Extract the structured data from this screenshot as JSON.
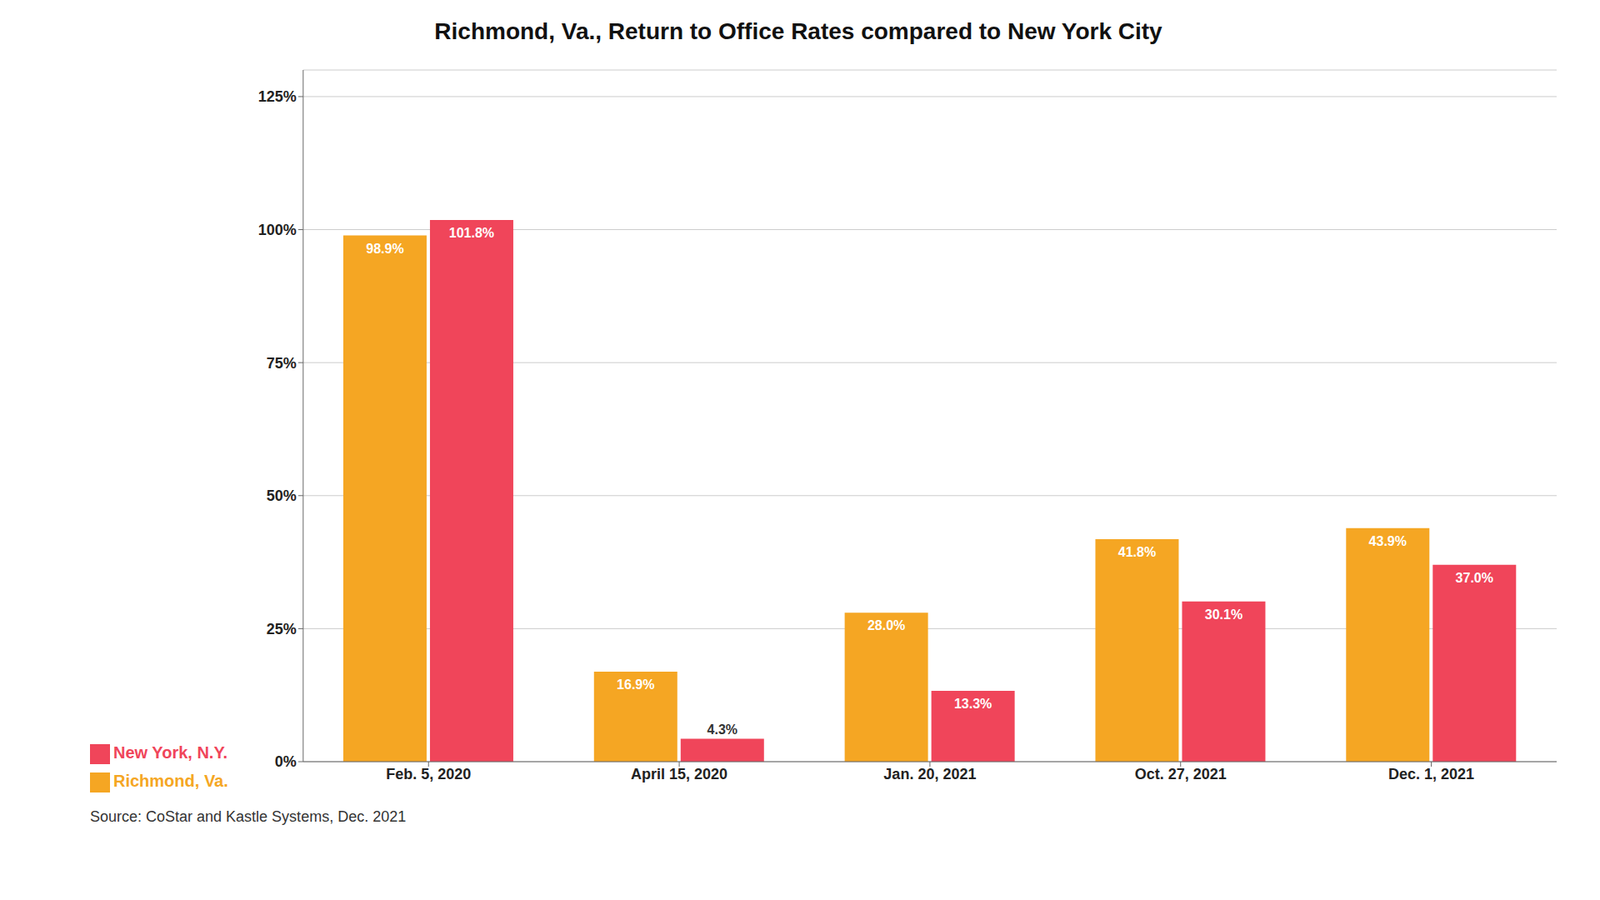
{
  "chart_data": {
    "type": "bar",
    "title": "Richmond, Va., Return to Office Rates compared to New York City",
    "categories": [
      "Feb. 5, 2020",
      "April 15, 2020",
      "Jan. 20, 2021",
      "Oct. 27, 2021",
      "Dec. 1, 2021"
    ],
    "series": [
      {
        "name": "Richmond, Va.",
        "color": "#F5A623",
        "values": [
          98.9,
          16.9,
          28.0,
          41.8,
          43.9
        ],
        "value_labels": [
          "98.9%",
          "16.9%",
          "28.0%",
          "41.8%",
          "43.9%"
        ]
      },
      {
        "name": "New York, N.Y.",
        "color": "#F0455A",
        "values": [
          101.8,
          4.3,
          13.3,
          30.1,
          37.0
        ],
        "value_labels": [
          "101.8%",
          "4.3%",
          "13.3%",
          "30.1%",
          "37.0%"
        ]
      }
    ],
    "ylim": [
      0,
      130
    ],
    "yticks": [
      {
        "value": 0,
        "label": "0%"
      },
      {
        "value": 25,
        "label": "25%"
      },
      {
        "value": 50,
        "label": "50%"
      },
      {
        "value": 75,
        "label": "75%"
      },
      {
        "value": 100,
        "label": "100%"
      },
      {
        "value": 125,
        "label": "125%"
      }
    ],
    "grid": true,
    "data_labels": true,
    "legend": "lower left",
    "annotations": [
      "Source: CoStar and Kastle Systems, Dec. 2021"
    ]
  }
}
